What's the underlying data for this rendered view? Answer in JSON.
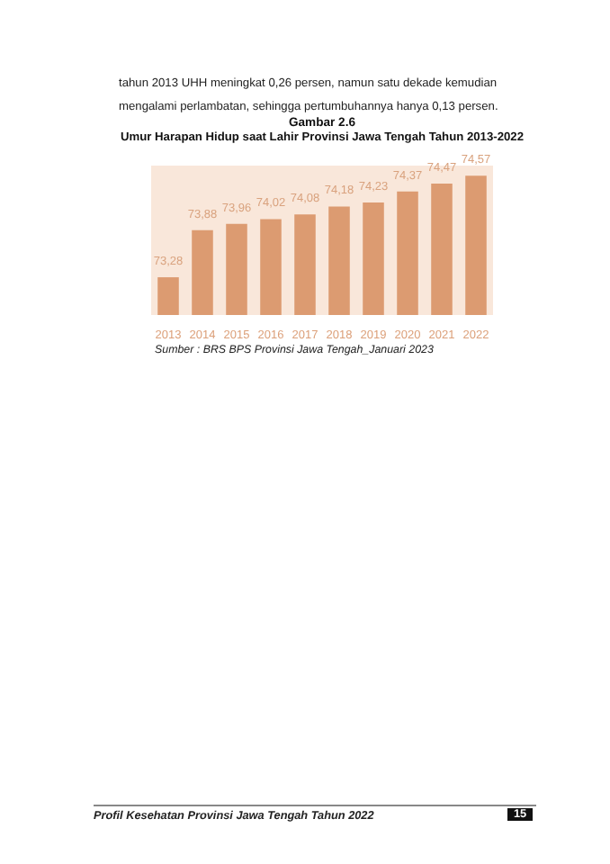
{
  "chart_data": {
    "type": "bar",
    "title": "Gambar 2.6",
    "subtitle": "Umur Harapan Hidup saat Lahir Provinsi Jawa Tengah Tahun 2013-2022",
    "categories": [
      "2013",
      "2014",
      "2015",
      "2016",
      "2017",
      "2018",
      "2019",
      "2020",
      "2021",
      "2022"
    ],
    "values": [
      73.28,
      73.88,
      73.96,
      74.02,
      74.08,
      74.18,
      74.23,
      74.37,
      74.47,
      74.57
    ],
    "value_labels": [
      "73,28",
      "73,88",
      "73,96",
      "74,02",
      "74,08",
      "74,18",
      "74,23",
      "74,37",
      "74,47",
      "74,57"
    ],
    "color": "#dc9b71",
    "ylim": [
      72.8,
      74.7
    ],
    "tick_labels": "x",
    "annotations": [
      "tahun 2013 UHH meningkat 0,26 persen, namun satu dekade kemudian mengalami perlambatan, sehingga pertumbuhannya hanya 0,13 persen.",
      "Sumber : BRS BPS Provinsi Jawa Tengah_Januari 2023",
      "Profil Kesehatan Provinsi Jawa Tengah Tahun 2022",
      "15"
    ]
  }
}
